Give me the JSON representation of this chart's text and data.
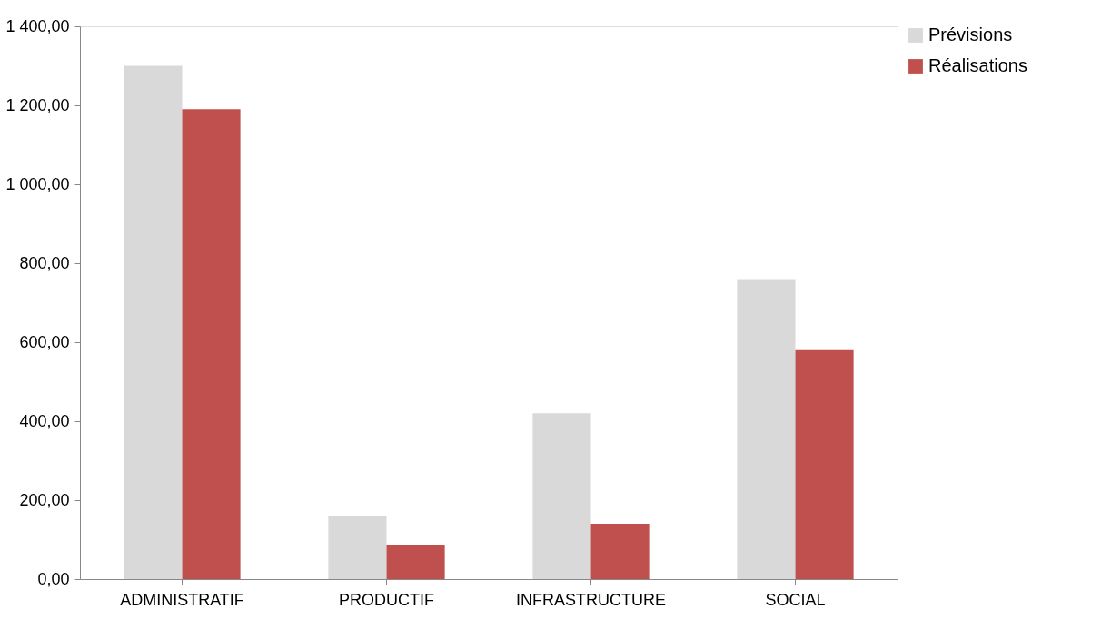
{
  "chart_data": {
    "type": "bar",
    "categories": [
      "ADMINISTRATIF",
      "PRODUCTIF",
      "INFRASTRUCTURE",
      "SOCIAL"
    ],
    "series": [
      {
        "name": "Prévisions",
        "color": "#d9d9d9",
        "values": [
          1300,
          160,
          420,
          760
        ]
      },
      {
        "name": "Réalisations",
        "color": "#c0504d",
        "values": [
          1190,
          85,
          140,
          580
        ]
      }
    ],
    "ylim": [
      0,
      1400
    ],
    "yticks": [
      {
        "value": 0,
        "label": "0,00"
      },
      {
        "value": 200,
        "label": "200,00"
      },
      {
        "value": 400,
        "label": "400,00"
      },
      {
        "value": 600,
        "label": "600,00"
      },
      {
        "value": 800,
        "label": "800,00"
      },
      {
        "value": 1000,
        "label": "1 000,00"
      },
      {
        "value": 1200,
        "label": "1 200,00"
      },
      {
        "value": 1400,
        "label": "1 400,00"
      }
    ],
    "grid": false,
    "legend": "right"
  }
}
